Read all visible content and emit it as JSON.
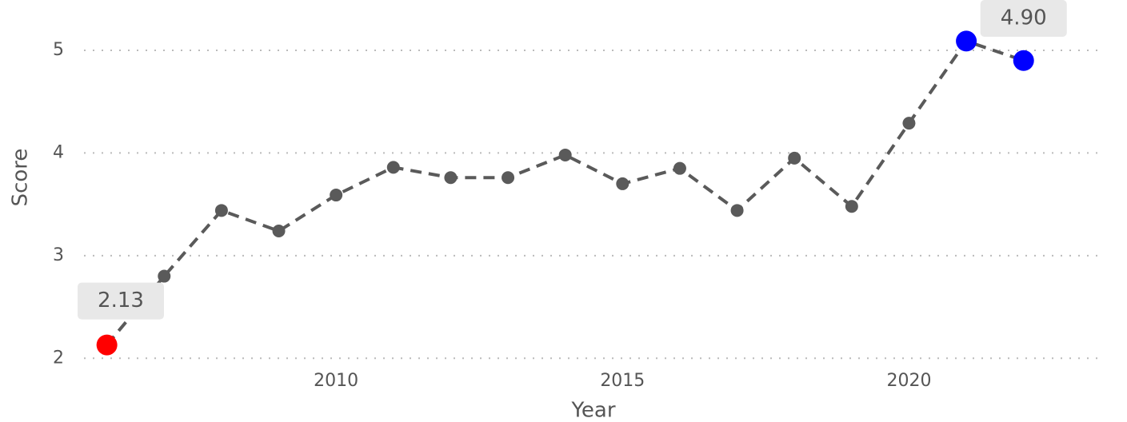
{
  "chart_data": {
    "type": "line",
    "x": [
      2006,
      2007,
      2008,
      2009,
      2010,
      2011,
      2012,
      2013,
      2014,
      2015,
      2016,
      2017,
      2018,
      2019,
      2020,
      2021,
      2022
    ],
    "series": [
      {
        "color": "#5a5a5a",
        "values": [
          2.13,
          2.8,
          3.44,
          3.24,
          3.59,
          3.86,
          3.76,
          3.76,
          3.98,
          3.7,
          3.85,
          3.44,
          3.95,
          3.48,
          4.29,
          5.09,
          4.9
        ],
        "point_colors": [
          "#ff0000",
          "#5a5a5a",
          "#5a5a5a",
          "#5a5a5a",
          "#5a5a5a",
          "#5a5a5a",
          "#5a5a5a",
          "#5a5a5a",
          "#5a5a5a",
          "#5a5a5a",
          "#5a5a5a",
          "#5a5a5a",
          "#5a5a5a",
          "#5a5a5a",
          "#5a5a5a",
          "#0000ff",
          "#0000ff"
        ],
        "value_labels": [
          "2.13",
          null,
          null,
          null,
          null,
          null,
          null,
          null,
          null,
          null,
          null,
          null,
          null,
          null,
          null,
          null,
          "4.90"
        ]
      }
    ],
    "xlabel": "Year",
    "ylabel": "Score",
    "xlim": [
      2005.6,
      2023.4
    ],
    "xticks": [
      2010,
      2015,
      2020
    ],
    "ylim": [
      1.87,
      5.49
    ],
    "yticks": [
      2,
      3,
      4,
      5
    ],
    "grid": true
  }
}
